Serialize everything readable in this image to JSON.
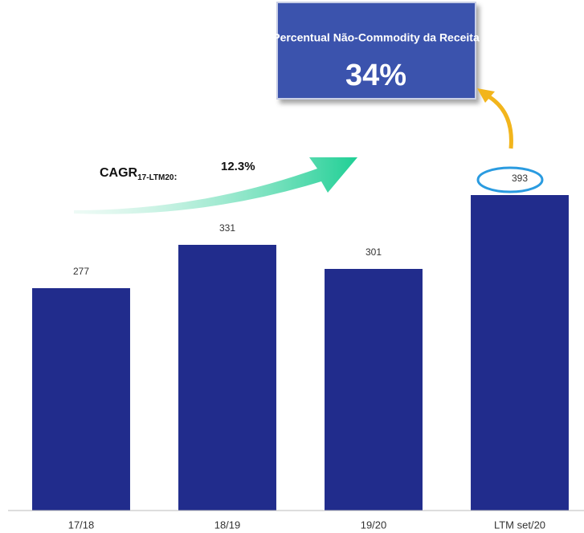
{
  "chart_data": {
    "type": "bar",
    "categories": [
      "17/18",
      "18/19",
      "19/20",
      "LTM set/20"
    ],
    "values": [
      277,
      331,
      301,
      393
    ],
    "color": "#212c8c",
    "ylim": [
      0,
      450
    ],
    "annotations": {
      "callout_title": "Percentual Não-Commodity da Receita",
      "callout_value": "34%",
      "cagr_label": "CAGR",
      "cagr_subscript": "17-LTM20",
      "cagr_separator": ":",
      "cagr_value": "12.3%"
    }
  }
}
